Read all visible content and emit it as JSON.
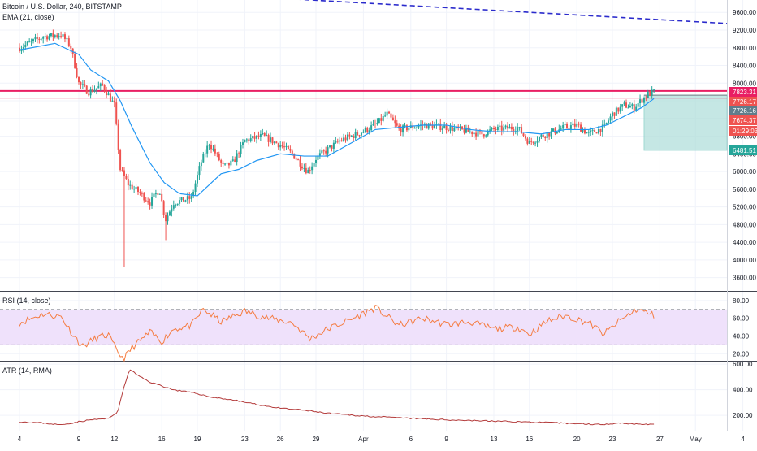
{
  "header": {
    "symbol_line": "Bitcoin / U.S. Dollar, 240, BITSTAMP",
    "ema_label": "EMA (21, close)"
  },
  "rsi_label": "RSI (14, close)",
  "atr_label": "ATR (14, RMA)",
  "colors": {
    "up": "#26a69a",
    "down": "#ef5350",
    "ema": "#2196f3",
    "resistance": "#e91e63",
    "trend": "#2b2bcc",
    "rsi": "#f57c41",
    "rsi_band": "#efe1fb",
    "atr": "#b33a3a",
    "axis_text": "#131722",
    "grid": "#f0f3fa"
  },
  "chart_data": [
    {
      "type": "candlestick",
      "title": "Bitcoin / U.S. Dollar, 240, BITSTAMP",
      "overlay": "EMA (21, close)",
      "y_ticks": [
        3600,
        4000,
        4400,
        4800,
        5200,
        5600,
        6000,
        6400,
        6800,
        7200,
        7600,
        8000,
        8400,
        8800,
        9200,
        9600
      ],
      "y_tick_labels": [
        "3600.00",
        "4000.00",
        "4400.00",
        "4800.00",
        "5200.00",
        "5600.00",
        "6000.00",
        "6400.00",
        "6800.00",
        "7200.00",
        "7600.00",
        "8000.00",
        "8400.00",
        "8800.00",
        "9200.00",
        "9600.00"
      ],
      "ylim": [
        3300,
        9880
      ],
      "x_ticks": [
        "4",
        "9",
        "12",
        "16",
        "19",
        "23",
        "26",
        "29",
        "Apr",
        "6",
        "9",
        "13",
        "16",
        "20",
        "23",
        "27",
        "May",
        "4"
      ],
      "price_labels": [
        {
          "text": "7823.31",
          "value": 7823.31,
          "color": "#e91e63"
        },
        {
          "text": "7726.17",
          "value": 7726.17,
          "color": "#ef5350"
        },
        {
          "text": "7726.16",
          "value": 7726.16,
          "color": "#607d8b"
        },
        {
          "text": "7674.37",
          "value": 7674.37,
          "color": "#ef5350"
        },
        {
          "text": "01:29:03",
          "value": 7400,
          "color": "#ef5350"
        },
        {
          "text": "6481.51",
          "value": 6481.51,
          "color": "#26a69a"
        }
      ],
      "resistance_level": 7823.31,
      "position_box": {
        "entry": 7726.16,
        "target": 6481.51
      },
      "trendline": {
        "from": 9950,
        "to": 9350
      },
      "price_path": [
        {
          "day": 4,
          "price": 8800
        },
        {
          "day": 6,
          "price": 9050
        },
        {
          "day": 7.5,
          "price": 9100
        },
        {
          "day": 8.3,
          "price": 8850
        },
        {
          "day": 9,
          "price": 8000
        },
        {
          "day": 9.8,
          "price": 7800
        },
        {
          "day": 11,
          "price": 7950
        },
        {
          "day": 12,
          "price": 7500
        },
        {
          "day": 12.5,
          "price": 6050
        },
        {
          "day": 13.2,
          "price": 5700
        },
        {
          "day": 14,
          "price": 5550
        },
        {
          "day": 15,
          "price": 5300
        },
        {
          "day": 15.8,
          "price": 5600
        },
        {
          "day": 16.3,
          "price": 4900
        },
        {
          "day": 17,
          "price": 5300
        },
        {
          "day": 18.5,
          "price": 5400
        },
        {
          "day": 19.3,
          "price": 6200
        },
        {
          "day": 20,
          "price": 6650
        },
        {
          "day": 21.2,
          "price": 6100
        },
        {
          "day": 22,
          "price": 6200
        },
        {
          "day": 23,
          "price": 6700
        },
        {
          "day": 24.5,
          "price": 6800
        },
        {
          "day": 26,
          "price": 6600
        },
        {
          "day": 27,
          "price": 6400
        },
        {
          "day": 28.3,
          "price": 6000
        },
        {
          "day": 29,
          "price": 6300
        },
        {
          "day": 31,
          "price": 6700
        },
        {
          "day": 32.5,
          "price": 6850
        },
        {
          "day": 34,
          "price": 7050
        },
        {
          "day": 35,
          "price": 7300
        },
        {
          "day": 36,
          "price": 6950
        },
        {
          "day": 38,
          "price": 7050
        },
        {
          "day": 40,
          "price": 7000
        },
        {
          "day": 42,
          "price": 6900
        },
        {
          "day": 43,
          "price": 6850
        },
        {
          "day": 44,
          "price": 6950
        },
        {
          "day": 46,
          "price": 7000
        },
        {
          "day": 47,
          "price": 6650
        },
        {
          "day": 48,
          "price": 6800
        },
        {
          "day": 50,
          "price": 7000
        },
        {
          "day": 51,
          "price": 7050
        },
        {
          "day": 52,
          "price": 6850
        },
        {
          "day": 53.3,
          "price": 7000
        },
        {
          "day": 54,
          "price": 7300
        },
        {
          "day": 55,
          "price": 7500
        },
        {
          "day": 55.8,
          "price": 7450
        },
        {
          "day": 57,
          "price": 7750
        },
        {
          "day": 57.5,
          "price": 7800
        }
      ],
      "ema_path": [
        {
          "day": 4,
          "price": 8750
        },
        {
          "day": 7,
          "price": 8900
        },
        {
          "day": 9,
          "price": 8650
        },
        {
          "day": 10,
          "price": 8300
        },
        {
          "day": 11.5,
          "price": 8050
        },
        {
          "day": 12.5,
          "price": 7600
        },
        {
          "day": 13.5,
          "price": 7000
        },
        {
          "day": 15,
          "price": 6200
        },
        {
          "day": 16.2,
          "price": 5750
        },
        {
          "day": 17.5,
          "price": 5500
        },
        {
          "day": 19,
          "price": 5450
        },
        {
          "day": 20,
          "price": 5700
        },
        {
          "day": 21,
          "price": 5950
        },
        {
          "day": 22.5,
          "price": 6050
        },
        {
          "day": 24,
          "price": 6250
        },
        {
          "day": 26,
          "price": 6400
        },
        {
          "day": 28,
          "price": 6350
        },
        {
          "day": 30,
          "price": 6350
        },
        {
          "day": 32,
          "price": 6650
        },
        {
          "day": 34,
          "price": 6950
        },
        {
          "day": 36,
          "price": 7000
        },
        {
          "day": 38,
          "price": 7050
        },
        {
          "day": 40,
          "price": 7050
        },
        {
          "day": 42,
          "price": 6950
        },
        {
          "day": 44,
          "price": 6900
        },
        {
          "day": 46,
          "price": 6900
        },
        {
          "day": 48,
          "price": 6850
        },
        {
          "day": 50,
          "price": 6950
        },
        {
          "day": 52,
          "price": 6950
        },
        {
          "day": 53.5,
          "price": 7050
        },
        {
          "day": 55,
          "price": 7250
        },
        {
          "day": 56.5,
          "price": 7450
        },
        {
          "day": 57.5,
          "price": 7650
        }
      ]
    },
    {
      "type": "line",
      "title": "RSI (14, close)",
      "y_ticks": [
        20,
        40,
        60,
        80
      ],
      "y_tick_labels": [
        "20.00",
        "40.00",
        "60.00",
        "80.00"
      ],
      "ylim": [
        12,
        90
      ],
      "band": [
        30,
        70
      ],
      "path": [
        {
          "day": 4,
          "value": 55
        },
        {
          "day": 6,
          "value": 65
        },
        {
          "day": 7.5,
          "value": 62
        },
        {
          "day": 8.5,
          "value": 42
        },
        {
          "day": 9.3,
          "value": 28
        },
        {
          "day": 10.5,
          "value": 38
        },
        {
          "day": 11.5,
          "value": 41
        },
        {
          "day": 12.2,
          "value": 23
        },
        {
          "day": 12.8,
          "value": 14
        },
        {
          "day": 13.5,
          "value": 27
        },
        {
          "day": 15,
          "value": 44
        },
        {
          "day": 16,
          "value": 34
        },
        {
          "day": 17,
          "value": 48
        },
        {
          "day": 18.5,
          "value": 52
        },
        {
          "day": 19.5,
          "value": 70
        },
        {
          "day": 21,
          "value": 56
        },
        {
          "day": 23,
          "value": 68
        },
        {
          "day": 25,
          "value": 60
        },
        {
          "day": 27,
          "value": 55
        },
        {
          "day": 28.5,
          "value": 37
        },
        {
          "day": 30,
          "value": 48
        },
        {
          "day": 32,
          "value": 59
        },
        {
          "day": 34,
          "value": 72
        },
        {
          "day": 36,
          "value": 52
        },
        {
          "day": 38,
          "value": 60
        },
        {
          "day": 40,
          "value": 53
        },
        {
          "day": 42,
          "value": 56
        },
        {
          "day": 44,
          "value": 48
        },
        {
          "day": 46,
          "value": 50
        },
        {
          "day": 47,
          "value": 42
        },
        {
          "day": 48.5,
          "value": 57
        },
        {
          "day": 50,
          "value": 63
        },
        {
          "day": 52,
          "value": 55
        },
        {
          "day": 53.3,
          "value": 42
        },
        {
          "day": 54.5,
          "value": 56
        },
        {
          "day": 56,
          "value": 70
        },
        {
          "day": 57,
          "value": 66
        },
        {
          "day": 57.5,
          "value": 63
        }
      ]
    },
    {
      "type": "line",
      "title": "ATR (14, RMA)",
      "y_ticks": [
        200,
        400,
        600
      ],
      "y_tick_labels": [
        "200.00",
        "400.00",
        "600.00"
      ],
      "ylim": [
        80,
        620
      ],
      "path": [
        {
          "day": 4,
          "value": 150
        },
        {
          "day": 6,
          "value": 140
        },
        {
          "day": 7.5,
          "value": 125
        },
        {
          "day": 9,
          "value": 150
        },
        {
          "day": 10,
          "value": 165
        },
        {
          "day": 11.5,
          "value": 175
        },
        {
          "day": 12.3,
          "value": 230
        },
        {
          "day": 12.8,
          "value": 420
        },
        {
          "day": 13.3,
          "value": 560
        },
        {
          "day": 14,
          "value": 510
        },
        {
          "day": 15,
          "value": 460
        },
        {
          "day": 16,
          "value": 430
        },
        {
          "day": 17,
          "value": 400
        },
        {
          "day": 19,
          "value": 370
        },
        {
          "day": 20,
          "value": 345
        },
        {
          "day": 22,
          "value": 320
        },
        {
          "day": 24,
          "value": 285
        },
        {
          "day": 26,
          "value": 255
        },
        {
          "day": 28,
          "value": 240
        },
        {
          "day": 30,
          "value": 215
        },
        {
          "day": 33,
          "value": 195
        },
        {
          "day": 36,
          "value": 180
        },
        {
          "day": 40,
          "value": 165
        },
        {
          "day": 44,
          "value": 155
        },
        {
          "day": 48,
          "value": 145
        },
        {
          "day": 51,
          "value": 135
        },
        {
          "day": 53,
          "value": 128
        },
        {
          "day": 54.5,
          "value": 140
        },
        {
          "day": 56,
          "value": 132
        },
        {
          "day": 57.5,
          "value": 128
        }
      ]
    }
  ]
}
